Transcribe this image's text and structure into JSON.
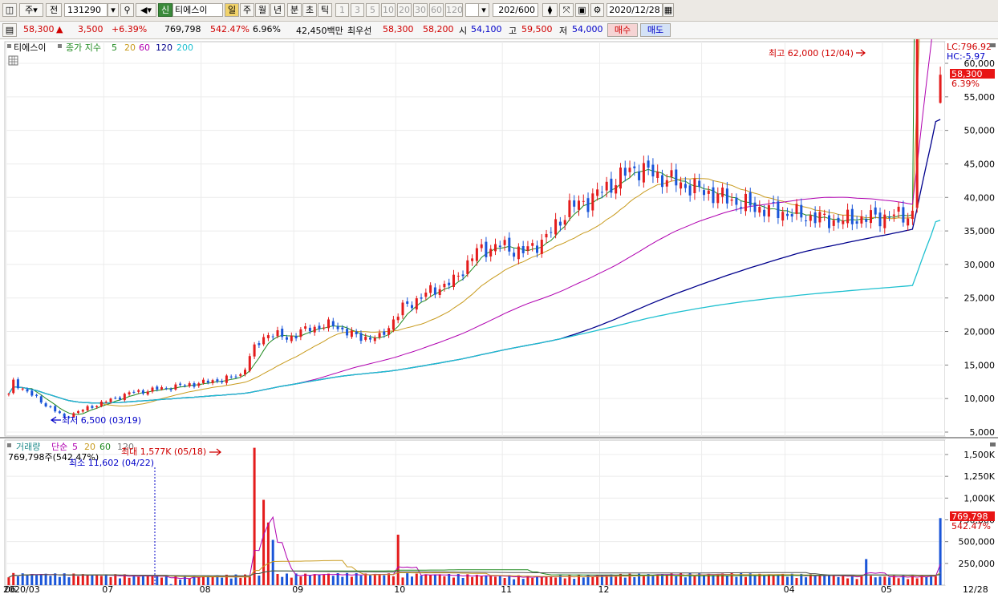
{
  "toolbar": {
    "market_btn": "주",
    "prev_btn": "전",
    "code": "131290",
    "signal_badge": "신",
    "stock_name": "티에스이",
    "periods": [
      "일",
      "주",
      "월",
      "년",
      "분",
      "초",
      "틱"
    ],
    "active_period": "일",
    "intervals": [
      "1",
      "3",
      "5",
      "10",
      "20",
      "30",
      "60",
      "120"
    ],
    "count": "202",
    "count_max": "/600",
    "date": "2020/12/28"
  },
  "quote": {
    "price": "58,300",
    "change": "3,500",
    "change_pct": "+6.39%",
    "volume": "769,798",
    "volume_ratio": "542.47%",
    "turnover": "6.96%",
    "amount": "42,450백만",
    "best_label": "최우선",
    "best_ask": "58,300",
    "best_bid": "58,200",
    "open_label": "시",
    "open": "54,100",
    "high_label": "고",
    "high": "59,500",
    "low_label": "저",
    "low": "54,000",
    "buy_btn": "매수",
    "sell_btn": "매도"
  },
  "price_panel": {
    "series_name": "티에스이",
    "indicator_label": "종가 지수",
    "ma_periods": [
      "5",
      "20",
      "60",
      "120",
      "200"
    ],
    "ma_colors": [
      "#1f8a1f",
      "#c89a1c",
      "#b000b0",
      "#00008c",
      "#1ec0d0"
    ],
    "lc_label": "LC:796.92",
    "hc_label": "HC:-5.97",
    "current_price_tag": "58,300",
    "current_pct_tag": "6.39%",
    "high_annotation": "최고 62,000 (12/04)",
    "low_annotation": "최저 6,500 (03/19)",
    "y_ticks": [
      "60,000",
      "55,000",
      "50,000",
      "45,000",
      "40,000",
      "35,000",
      "30,000",
      "25,000",
      "20,000",
      "15,000",
      "10,000",
      "5,000"
    ]
  },
  "volume_panel": {
    "label": "거래량",
    "ma_label": "단순",
    "ma_periods": [
      "5",
      "20",
      "60",
      "120"
    ],
    "ma_colors": [
      "#b000b0",
      "#c89a1c",
      "#1f8a1f",
      "#555555"
    ],
    "info_text": "769,798주(542.47%)",
    "max_annotation": "최대 1,577K (05/18)",
    "min_annotation": "최소 11,602 (04/22)",
    "current_volume_tag": "769,798",
    "current_pct_tag": "542.47%",
    "y_ticks": [
      "1,500K",
      "1,250K",
      "1,000K",
      "750,000",
      "500,000",
      "250,000"
    ]
  },
  "x_axis": {
    "labels": [
      "2020/03",
      "04",
      "05",
      "06",
      "07",
      "08",
      "09",
      "10",
      "11",
      "12"
    ],
    "end_label": "12/28"
  },
  "chart_data": {
    "type": "candlestick",
    "price_axis": {
      "min": 5000,
      "max": 60000,
      "step": 5000
    },
    "volume_axis": {
      "max": 1500000,
      "step": 250000
    },
    "months": [
      "2020/03",
      "04",
      "05",
      "06",
      "07",
      "08",
      "09",
      "10",
      "11",
      "12"
    ],
    "close_path": [
      [
        "03/02",
        12500
      ],
      [
        "03/09",
        10500
      ],
      [
        "03/19",
        7200
      ],
      [
        "03/26",
        8600
      ],
      [
        "04/02",
        9800
      ],
      [
        "04/09",
        10800
      ],
      [
        "04/16",
        11300
      ],
      [
        "04/23",
        11800
      ],
      [
        "04/30",
        12300
      ],
      [
        "05/07",
        12800
      ],
      [
        "05/14",
        13500
      ],
      [
        "05/18",
        17500
      ],
      [
        "05/22",
        19800
      ],
      [
        "05/29",
        19000
      ],
      [
        "06/05",
        20500
      ],
      [
        "06/12",
        21000
      ],
      [
        "06/19",
        19200
      ],
      [
        "06/26",
        19000
      ],
      [
        "07/03",
        23500
      ],
      [
        "07/10",
        26000
      ],
      [
        "07/17",
        27500
      ],
      [
        "07/24",
        32000
      ],
      [
        "07/31",
        32800
      ],
      [
        "08/07",
        31800
      ],
      [
        "08/14",
        34000
      ],
      [
        "08/21",
        38500
      ],
      [
        "08/28",
        39500
      ],
      [
        "09/04",
        44500
      ],
      [
        "09/08",
        42000
      ],
      [
        "09/15",
        38500
      ],
      [
        "09/22",
        36500
      ],
      [
        "09/29",
        37500
      ],
      [
        "10/06",
        38000
      ],
      [
        "10/13",
        39500
      ],
      [
        "10/20",
        36000
      ],
      [
        "10/27",
        34500
      ],
      [
        "11/03",
        34000
      ],
      [
        "11/10",
        33800
      ],
      [
        "11/17",
        32800
      ],
      [
        "11/24",
        34000
      ],
      [
        "12/01",
        35500
      ],
      [
        "12/04",
        39000
      ],
      [
        "12/08",
        43000
      ],
      [
        "12/11",
        45000
      ],
      [
        "12/15",
        53000
      ],
      [
        "12/18",
        58000
      ],
      [
        "12/21",
        55000
      ],
      [
        "12/23",
        57000
      ],
      [
        "12/24",
        56500
      ],
      [
        "12/28",
        58300
      ]
    ],
    "high": {
      "value": 62000,
      "date": "12/04"
    },
    "low": {
      "value": 6500,
      "date": "03/19"
    },
    "last": {
      "open": 54100,
      "high": 59500,
      "low": 54000,
      "close": 58300,
      "volume": 769798
    },
    "volume_max": {
      "value": 1577000,
      "date": "05/18"
    },
    "volume_min": {
      "value": 11602,
      "date": "04/22"
    }
  }
}
